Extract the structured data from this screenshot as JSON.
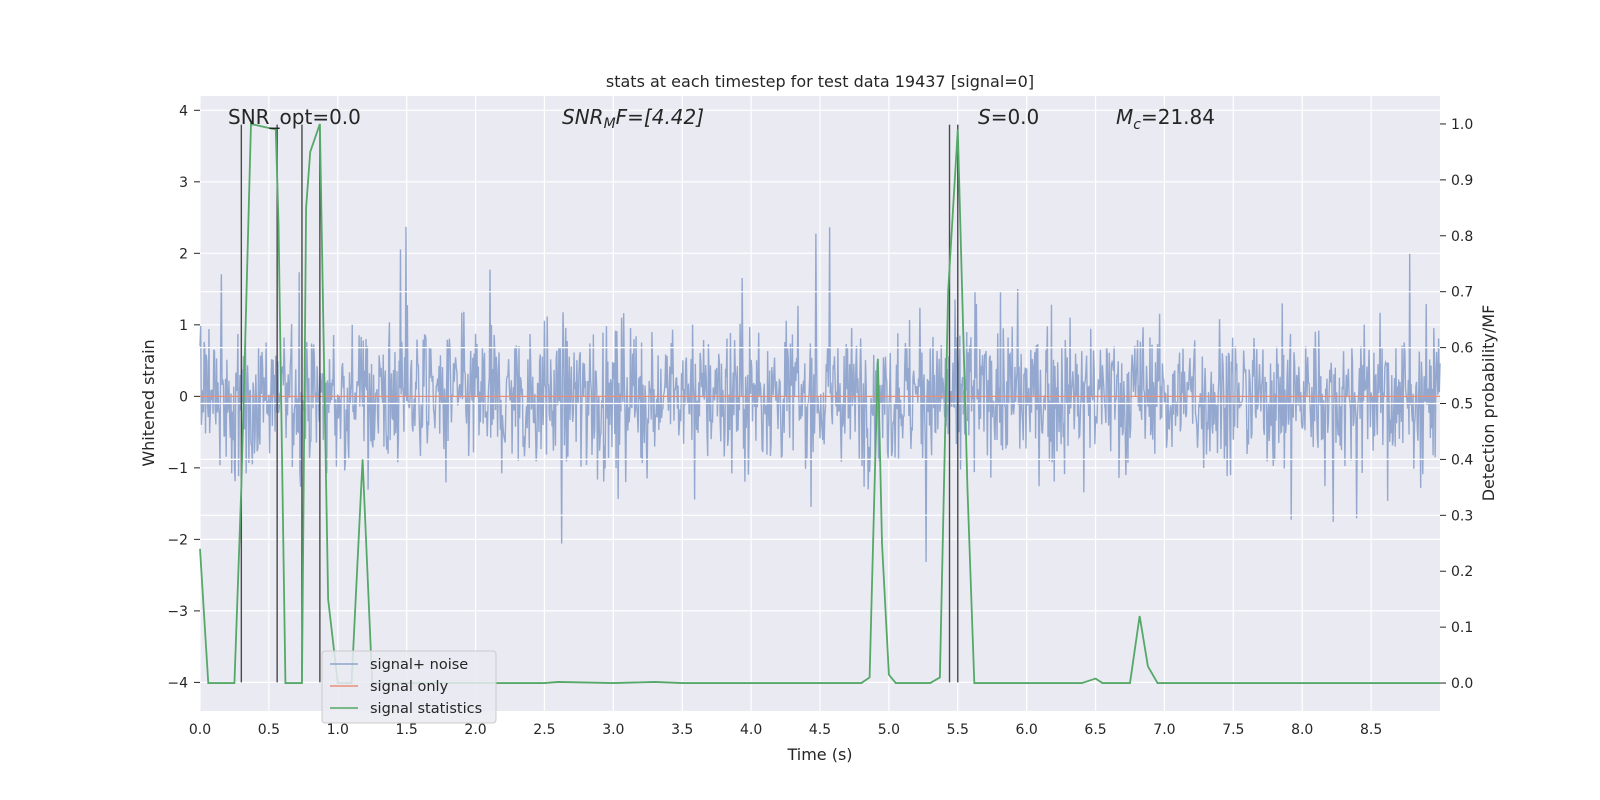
{
  "chart_data": {
    "type": "line",
    "title": "stats at each timestep for test data 19437 [signal=0]",
    "xlabel": "Time (s)",
    "ylabel": "Whitened strain",
    "y2label": "Detection probability/MF",
    "xlim": [
      0.0,
      9.0
    ],
    "ylim": [
      -4.4,
      4.2
    ],
    "y2lim": [
      -0.05,
      1.05
    ],
    "x_ticks": [
      "0.0",
      "0.5",
      "1.0",
      "1.5",
      "2.0",
      "2.5",
      "3.0",
      "3.5",
      "4.0",
      "4.5",
      "5.0",
      "5.5",
      "6.0",
      "6.5",
      "7.0",
      "7.5",
      "8.0",
      "8.5"
    ],
    "y_ticks": [
      "4",
      "3",
      "2",
      "1",
      "0",
      "−1",
      "−2",
      "−3",
      "−4"
    ],
    "y2_ticks": [
      "0.0",
      "0.1",
      "0.2",
      "0.3",
      "0.4",
      "0.5",
      "0.6",
      "0.7",
      "0.8",
      "0.9",
      "1.0"
    ],
    "grid": true,
    "legend_position": "lower-left",
    "annotations": {
      "snr_opt": "SNR_opt=0.0",
      "snr_mf_prefix": "SNR",
      "snr_mf_sub": "M",
      "snr_mf_suffix": "F=[4.42]",
      "s_sym": "S",
      "s_val": "=0.0",
      "mc_sym": "M",
      "mc_sub": "c",
      "mc_val": "=21.84"
    },
    "series": [
      {
        "name": "signal+ noise",
        "color": "#8fa4cc",
        "kind": "noise",
        "amplitude_range": [
          -3.75,
          3.8
        ]
      },
      {
        "name": "signal only",
        "color": "#e6907a",
        "x": [
          0.0,
          9.0
        ],
        "y": [
          0.0,
          0.0
        ]
      },
      {
        "name": "signal statistics",
        "color": "#55a868",
        "axis": "right",
        "x": [
          0.0,
          0.06,
          0.25,
          0.3,
          0.37,
          0.55,
          0.57,
          0.62,
          0.74,
          0.77,
          0.8,
          0.87,
          0.93,
          1.0,
          1.1,
          1.18,
          1.25,
          1.3,
          2.0,
          2.5,
          2.6,
          3.0,
          3.3,
          3.5,
          4.0,
          4.5,
          4.8,
          4.86,
          4.92,
          4.95,
          5.0,
          5.05,
          5.3,
          5.37,
          5.43,
          5.5,
          5.57,
          5.62,
          6.0,
          6.4,
          6.5,
          6.55,
          6.75,
          6.82,
          6.88,
          6.95,
          7.5,
          8.0,
          9.0
        ],
        "y": [
          0.24,
          0.0,
          0.0,
          0.35,
          1.0,
          0.99,
          0.82,
          0.0,
          0.0,
          0.85,
          0.95,
          1.0,
          0.15,
          0.0,
          0.0,
          0.4,
          0.0,
          0.0,
          0.0,
          0.0,
          0.002,
          0.0,
          0.002,
          0.0,
          0.0,
          0.0,
          0.0,
          0.01,
          0.58,
          0.25,
          0.015,
          0.0,
          0.0,
          0.01,
          0.7,
          0.99,
          0.35,
          0.0,
          0.0,
          0.0,
          0.008,
          0.0,
          0.0,
          0.12,
          0.03,
          0.0,
          0.0,
          0.0,
          0.0
        ]
      }
    ],
    "vertical_markers": [
      {
        "x": 0.3,
        "y_top": 3.8,
        "y_bottom": -4.0
      },
      {
        "x": 0.56,
        "y_top": 3.8,
        "y_bottom": -4.0
      },
      {
        "x": 0.74,
        "y_top": 3.8,
        "y_bottom": -4.0
      },
      {
        "x": 0.87,
        "y_top": 3.8,
        "y_bottom": -4.0
      },
      {
        "x": 5.44,
        "y_top": 3.8,
        "y_bottom": -4.0
      },
      {
        "x": 5.5,
        "y_top": 3.8,
        "y_bottom": -4.0
      }
    ],
    "secondary_grid_values": [
      0.3,
      0.4,
      0.5,
      0.6,
      0.7
    ]
  }
}
